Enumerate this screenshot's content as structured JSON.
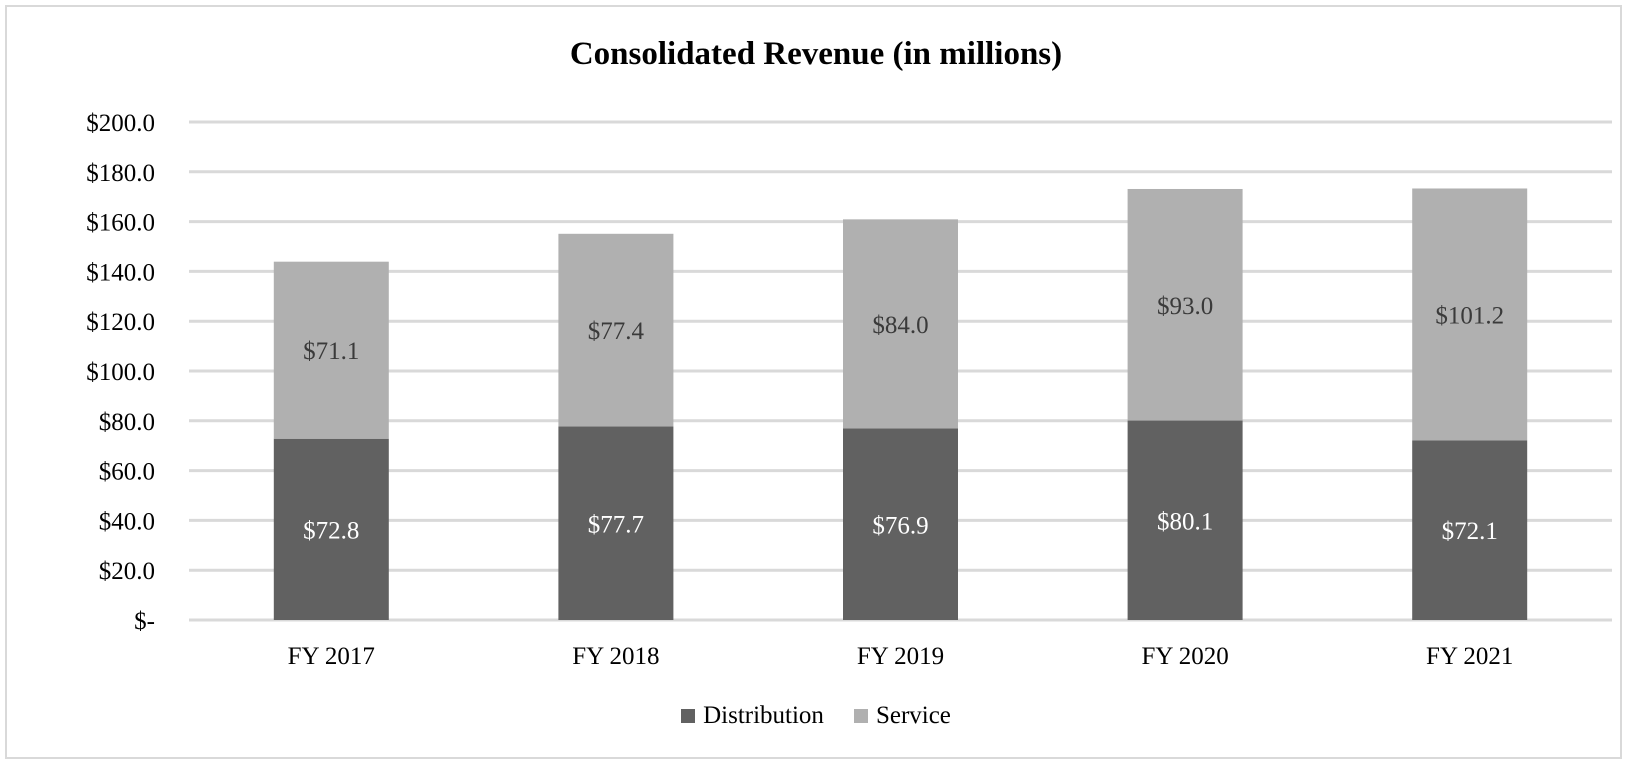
{
  "chart_data": {
    "type": "bar",
    "stacked": true,
    "title": "Consolidated Revenue (in millions)",
    "categories": [
      "FY 2017",
      "FY 2018",
      "FY 2019",
      "FY 2020",
      "FY 2021"
    ],
    "series": [
      {
        "name": "Distribution",
        "values": [
          72.8,
          77.7,
          76.9,
          80.1,
          72.1
        ],
        "labels": [
          "$72.8",
          "$77.7",
          "$76.9",
          "$80.1",
          "$72.1"
        ],
        "color": "#616161",
        "label_color": "#ffffff"
      },
      {
        "name": "Service",
        "values": [
          71.1,
          77.4,
          84.0,
          93.0,
          101.2
        ],
        "labels": [
          "$71.1",
          "$77.4",
          "$84.0",
          "$93.0",
          "$101.2"
        ],
        "color": "#b0b0b0",
        "label_color": "#3a3a3a"
      }
    ],
    "ylim": [
      0,
      200
    ],
    "yticks": [
      0,
      20,
      40,
      60,
      80,
      100,
      120,
      140,
      160,
      180,
      200
    ],
    "ytick_labels": [
      "$-",
      "$20.0",
      "$40.0",
      "$60.0",
      "$80.0",
      "$100.0",
      "$120.0",
      "$140.0",
      "$160.0",
      "$180.0",
      "$200.0"
    ],
    "grid": true,
    "grid_color": "#d9d9d9",
    "legend_position": "bottom",
    "xlabel": "",
    "ylabel": ""
  }
}
